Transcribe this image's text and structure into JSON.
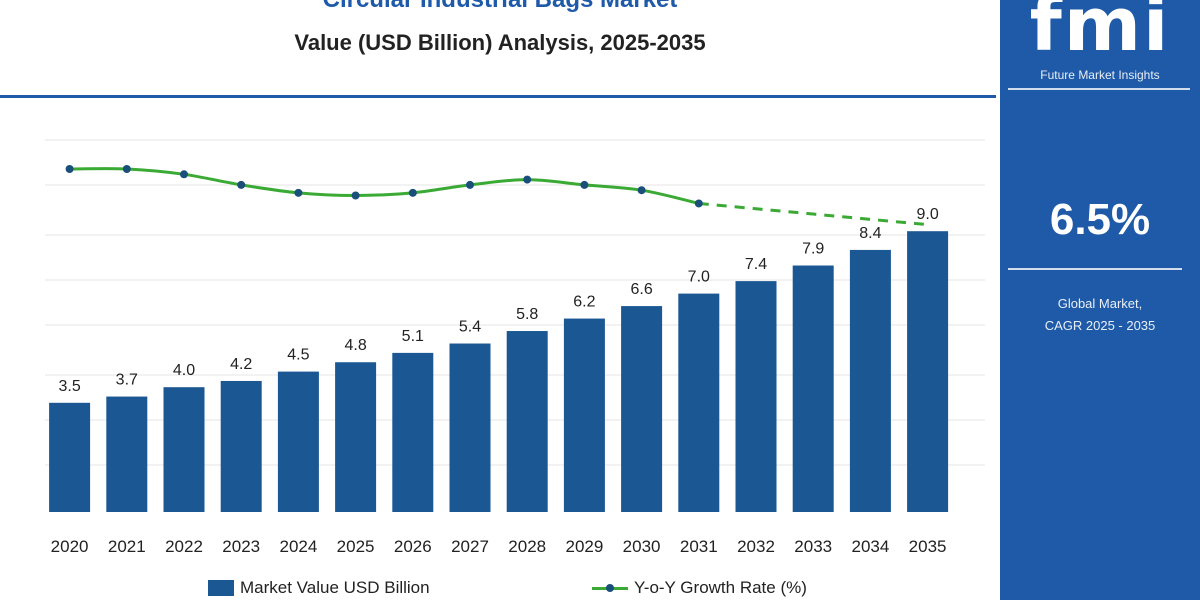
{
  "title": "Circular Industrial Bags Market",
  "subtitle": "Value (USD Billion) Analysis, 2025-2035",
  "colors": {
    "brand": "#1e5aa8",
    "bar": "#1a5793",
    "line": "#3aaa35",
    "dot": "#1a4f7a",
    "gridline": "#e5e5e5"
  },
  "side_panel": {
    "logo": "fmi",
    "logo_sub": "Future Market Insights",
    "cagr_value": "6.5%",
    "cagr_label_1": "Global Market,",
    "cagr_label_2": "CAGR 2025 - 2035"
  },
  "chart_data": {
    "type": "bar",
    "categories": [
      "2020",
      "2021",
      "2022",
      "2023",
      "2024",
      "2025",
      "2026",
      "2027",
      "2028",
      "2029",
      "2030",
      "2031",
      "2032",
      "2033",
      "2034",
      "2035"
    ],
    "series": [
      {
        "name": "Market Value USD Billion",
        "type": "bar",
        "values": [
          3.5,
          3.7,
          4.0,
          4.2,
          4.5,
          4.8,
          5.1,
          5.4,
          5.8,
          6.2,
          6.6,
          7.0,
          7.4,
          7.9,
          8.4,
          9.0
        ],
        "labels": [
          "3.5",
          "3.7",
          "4.0",
          "4.2",
          "4.5",
          "4.8",
          "5.1",
          "5.4",
          "5.8",
          "6.2",
          "6.6",
          "7.0",
          "7.4",
          "7.9",
          "8.4",
          "9.0"
        ]
      },
      {
        "name": "Y-o-Y Growth Rate (%)",
        "type": "line",
        "values": [
          6.9,
          6.9,
          6.7,
          6.3,
          6.0,
          5.9,
          6.0,
          6.3,
          6.5,
          6.3,
          6.1,
          5.6,
          5.4,
          5.2,
          5.0,
          4.8
        ],
        "dashed_from_index": 12
      }
    ],
    "ylim": [
      0,
      10
    ],
    "line_ylim": [
      0,
      8.7
    ],
    "grid": true,
    "legend_position": "bottom"
  }
}
